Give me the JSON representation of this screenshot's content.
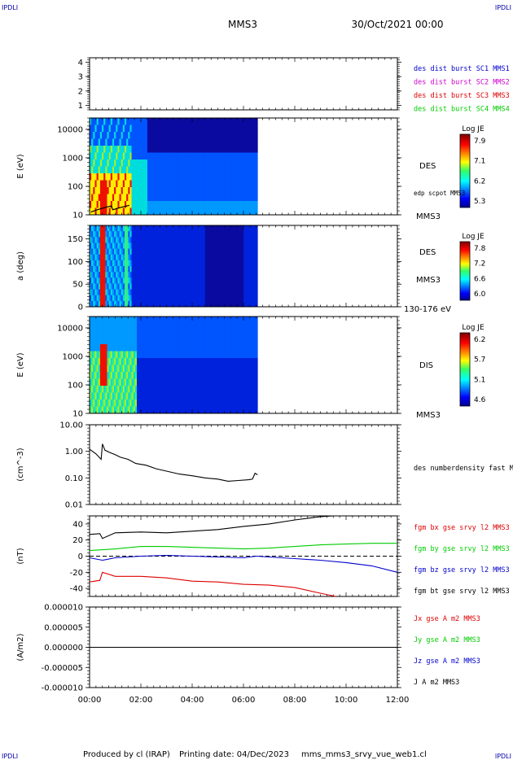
{
  "header": {
    "corner_tl": "IPDLI",
    "corner_tr": "IPDLI",
    "corner_bl": "IPDLI",
    "corner_br": "IPDLI",
    "spacecraft": "MMS3",
    "datetime": "30/Oct/2021 00:00"
  },
  "footer": {
    "producer": "Produced by cl (IRAP)",
    "printing": "Printing date: 04/Dec/2023",
    "file": "mms_mms3_srvy_vue_web1.cl"
  },
  "x_axis": {
    "ticks": [
      "00:00",
      "02:00",
      "04:00",
      "06:00",
      "08:00",
      "10:00",
      "12:00"
    ],
    "range_hours": [
      0,
      12
    ]
  },
  "colors": {
    "blue": "#0000cc",
    "magenta": "#cc00cc",
    "red": "#dd0000",
    "green": "#00cc00",
    "black": "#000000"
  },
  "chart_data": [
    {
      "type": "line",
      "panel": "burst",
      "yticks": [
        "1",
        "2",
        "3",
        "4"
      ],
      "ylim": [
        0.7,
        4.3
      ],
      "legend": [
        {
          "label": "des dist burst SC1 MMS1",
          "color": "#0000cc"
        },
        {
          "label": "des dist burst SC2 MMS2",
          "color": "#cc00cc"
        },
        {
          "label": "des dist burst SC3 MMS3",
          "color": "#dd0000"
        },
        {
          "label": "des dist burst SC4 MMS4",
          "color": "#00cc00"
        }
      ]
    },
    {
      "type": "heatmap",
      "panel": "des_energy",
      "ylabel": "E (eV)",
      "yscale": "log",
      "ylim": [
        10,
        25000
      ],
      "yticks": [
        "10",
        "100",
        "1000",
        "10000"
      ],
      "data_end_hours": 6.55,
      "right_labels": [
        "DES",
        "edp scpot MMS3",
        "MMS3"
      ],
      "colorbar": {
        "title": "Log JE",
        "ticks": [
          "7.9",
          "7.1",
          "6.2",
          "5.3"
        ]
      },
      "scpot_trace_hours": [
        0.05,
        1.6
      ]
    },
    {
      "type": "heatmap",
      "panel": "des_pitch",
      "ylabel": "a (deg)",
      "ylim": [
        0,
        180
      ],
      "yticks": [
        "0",
        "50",
        "100",
        "150"
      ],
      "data_end_hours": 6.55,
      "right_labels": [
        "DES",
        "MMS3",
        "130-176 eV"
      ],
      "colorbar": {
        "title": "Log JE",
        "ticks": [
          "7.8",
          "7.2",
          "6.6",
          "6.0"
        ]
      }
    },
    {
      "type": "heatmap",
      "panel": "dis_energy",
      "ylabel": "E (eV)",
      "yscale": "log",
      "ylim": [
        10,
        25000
      ],
      "yticks": [
        "10",
        "100",
        "1000",
        "10000"
      ],
      "data_end_hours": 6.55,
      "right_labels": [
        "DIS",
        "MMS3"
      ],
      "colorbar": {
        "title": "Log JE",
        "ticks": [
          "6.2",
          "5.7",
          "5.1",
          "4.6"
        ]
      }
    },
    {
      "type": "line",
      "panel": "density",
      "ylabel": "(cm^-3)",
      "yscale": "log",
      "ylim": [
        0.01,
        10
      ],
      "yticks": [
        "0.01",
        "0.10",
        "1.00",
        "10.00"
      ],
      "series": [
        {
          "name": "des numberdensity fast M",
          "color": "#000000",
          "x": [
            0.0,
            0.25,
            0.45,
            0.5,
            0.6,
            0.8,
            1.0,
            1.2,
            1.5,
            1.8,
            2.2,
            2.6,
            3.0,
            3.5,
            4.0,
            4.5,
            5.0,
            5.4,
            5.8,
            6.2,
            6.35,
            6.45,
            6.55
          ],
          "y": [
            1.2,
            0.8,
            0.5,
            1.9,
            1.1,
            0.9,
            0.75,
            0.6,
            0.5,
            0.35,
            0.3,
            0.22,
            0.18,
            0.14,
            0.12,
            0.1,
            0.09,
            0.075,
            0.08,
            0.085,
            0.09,
            0.15,
            0.13
          ]
        }
      ]
    },
    {
      "type": "line",
      "panel": "fgm",
      "ylabel": "(nT)",
      "ylim": [
        -50,
        50
      ],
      "yticks": [
        "-40",
        "-20",
        "0",
        "20",
        "40"
      ],
      "zero_line": true,
      "series": [
        {
          "name": "fgm bx gse srvy l2 MMS3",
          "color": "#dd0000",
          "x": [
            0,
            0.4,
            0.5,
            1.0,
            2.0,
            3.0,
            4.0,
            5.0,
            6.0,
            7.0,
            8.0,
            9.0,
            9.6
          ],
          "y": [
            -32,
            -30,
            -20,
            -25,
            -25,
            -27,
            -31,
            -32,
            -35,
            -36,
            -39,
            -46,
            -50
          ]
        },
        {
          "name": "fgm by gse srvy l2 MMS3",
          "color": "#00cc00",
          "x": [
            0,
            1,
            2,
            3,
            4,
            5,
            6,
            7,
            8,
            9,
            10,
            11,
            12
          ],
          "y": [
            7,
            9,
            12,
            12,
            11,
            10,
            9,
            10,
            12,
            14,
            15,
            16,
            16
          ]
        },
        {
          "name": "fgm bz gse srvy l2 MMS3",
          "color": "#0000cc",
          "x": [
            0,
            0.5,
            1,
            2,
            3,
            4,
            5,
            6,
            6.5,
            7,
            8,
            9,
            10,
            11,
            12
          ],
          "y": [
            -2,
            -5,
            -2,
            0,
            1,
            0,
            -1,
            -2,
            0,
            -1,
            -3,
            -5,
            -8,
            -12,
            -20
          ]
        },
        {
          "name": "fgm bt gse srvy l2 MMS3",
          "color": "#000000",
          "x": [
            0,
            0.4,
            0.5,
            1,
            2,
            3,
            4,
            5,
            6,
            7,
            8,
            9,
            9.5
          ],
          "y": [
            27,
            28,
            22,
            29,
            30,
            29,
            31,
            33,
            37,
            40,
            45,
            49,
            50
          ]
        }
      ]
    },
    {
      "type": "line",
      "panel": "current",
      "ylabel": "(A/m2)",
      "ylim": [
        -1e-05,
        1e-05
      ],
      "yticks": [
        "-0.000010",
        "-0.000005",
        "0.000000",
        "0.000005",
        "0.000010"
      ],
      "series": [
        {
          "name": "Jx gse A m2 MMS3",
          "color": "#dd0000",
          "x": [
            0,
            12
          ],
          "y": [
            0,
            0
          ]
        },
        {
          "name": "Jy gse A m2 MMS3",
          "color": "#00cc00",
          "x": [
            0,
            12
          ],
          "y": [
            0,
            0
          ]
        },
        {
          "name": "Jz gse A m2 MMS3",
          "color": "#0000cc",
          "x": [
            0,
            12
          ],
          "y": [
            0,
            0
          ]
        },
        {
          "name": "J A m2 MMS3",
          "color": "#000000",
          "x": [
            0,
            12
          ],
          "y": [
            0,
            0
          ]
        }
      ]
    }
  ]
}
